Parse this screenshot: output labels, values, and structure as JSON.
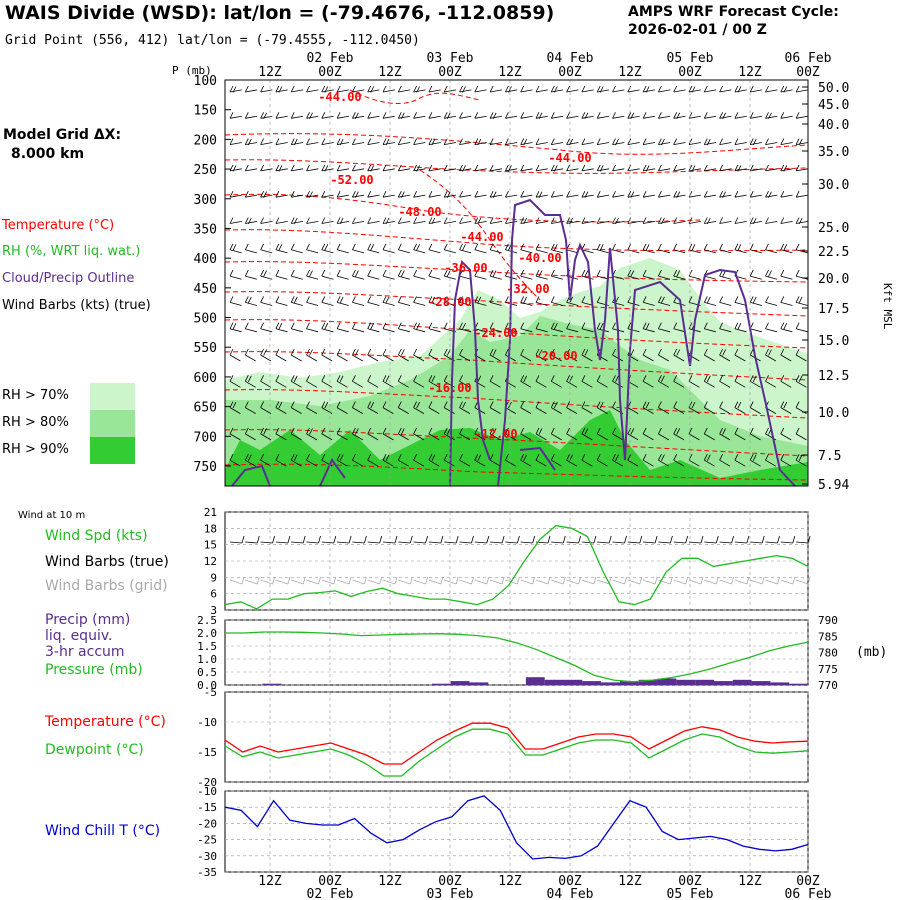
{
  "header": {
    "title": "WAIS Divide (WSD):  lat/lon = (-79.4676, -112.0859)",
    "grid_point": "Grid Point (556, 412) lat/lon = (-79.4555, -112.0450)",
    "cycle_line1": "AMPS WRF Forecast Cycle:",
    "cycle_line2": "2026-02-01 / 00  Z"
  },
  "left_panel": {
    "grid_label_line1": "Model Grid ΔX:",
    "grid_label_line2": "8.000 km",
    "legend_temperature": "Temperature (°C)",
    "legend_rh": "RH (%, WRT liq. wat.)",
    "legend_cloud": "Cloud/Precip Outline",
    "legend_wind": "Wind Barbs (kts) (true)",
    "rh_70": "RH > 70%",
    "rh_80": "RH > 80%",
    "rh_90": "RH > 90%",
    "wind10m": "Wind at 10 m",
    "wind_spd": "Wind Spd (kts)",
    "wind_barbs_true": "Wind Barbs (true)",
    "wind_barbs_grid": "Wind Barbs (grid)",
    "precip1": "Precip (mm)",
    "precip2": "liq. equiv.",
    "precip3": "3-hr accum",
    "pressure": "Pressure (mb)",
    "temperature": "Temperature (°C)",
    "dewpoint": "Dewpoint (°C)",
    "wind_chill": "Wind Chill T (°C)"
  },
  "colors": {
    "temperature": "#ff0000",
    "rh70": "#ccf5cc",
    "rh80": "#99e699",
    "rh90": "#33cc33",
    "cloud": "#5a2d91",
    "wind_spd": "#22bb22",
    "pressure": "#22bb22",
    "precip": "#5a2d91",
    "wind_chill": "#0000cc",
    "grid_barbs": "#aaaaaa"
  },
  "chart_data": [
    {
      "type": "contour",
      "name": "cross-section",
      "x_axis_top": {
        "ticks": [
          "12Z",
          "00Z",
          "12Z",
          "00Z",
          "12Z",
          "00Z",
          "12Z",
          "00Z",
          "12Z",
          "00Z"
        ],
        "day_labels": [
          "02 Feb",
          "03 Feb",
          "04 Feb",
          "05 Feb",
          "06 Feb"
        ]
      },
      "ylabel": "P (mb)",
      "y_ticks": [
        100,
        150,
        200,
        250,
        300,
        350,
        400,
        450,
        500,
        550,
        600,
        650,
        700,
        750
      ],
      "y2_label": "Kft MSL",
      "y2_ticks": [
        "50.0",
        "45.0",
        "40.0",
        "35.0",
        "30.0",
        "25.0",
        "22.5",
        "20.0",
        "17.5",
        "15.0",
        "12.5",
        "10.0",
        "7.5",
        "5.94"
      ],
      "temperature_labels": [
        "-44.00",
        "-44.00",
        "-52.00",
        "-48.00",
        "-44.00",
        "-40.00",
        "-36.00",
        "-32.00",
        "-28.00",
        "-24.00",
        "-20.00",
        "-16.00",
        "-12.00"
      ]
    },
    {
      "type": "line",
      "name": "wind-speed",
      "y_ticks": [
        3,
        6,
        9,
        12,
        15,
        18,
        21
      ],
      "ylim": [
        3,
        21
      ],
      "values": [
        4,
        4.5,
        3.2,
        5,
        5,
        6,
        6.2,
        6.5,
        5.5,
        6.4,
        7,
        6,
        5.5,
        5,
        5,
        4.5,
        4,
        5,
        7.5,
        12,
        16,
        18.5,
        18,
        16.5,
        10,
        4.5,
        4,
        5,
        10,
        12.5,
        12.5,
        11,
        11.5,
        12,
        12.5,
        13,
        12.5,
        11
      ]
    },
    {
      "type": "line+bar",
      "name": "precip-pressure",
      "y_ticks": [
        "0.0",
        "0.5",
        "1.0",
        "1.5",
        "2.0",
        "2.5"
      ],
      "y2_ticks": [
        "770",
        "775",
        "780",
        "785",
        "790"
      ],
      "y2_label": "(mb)",
      "pressure": [
        786,
        786,
        786.3,
        786.3,
        786.2,
        786,
        785.7,
        785.2,
        785.4,
        785.6,
        785.7,
        785.8,
        785.6,
        785.2,
        784.5,
        783,
        781,
        778.5,
        776,
        773,
        771.5,
        771,
        771.5,
        772.3,
        773.5,
        775,
        776.8,
        778.5,
        780.5,
        782,
        783.2
      ],
      "precip": [
        0,
        0,
        0.05,
        0,
        0,
        0,
        0,
        0,
        0,
        0,
        0,
        0.05,
        0.15,
        0.1,
        0,
        0,
        0.3,
        0.2,
        0.2,
        0.15,
        0.1,
        0.15,
        0.2,
        0.25,
        0.2,
        0.2,
        0.15,
        0.2,
        0.15,
        0.1,
        0.05
      ]
    },
    {
      "type": "line",
      "name": "temperature-dewpoint",
      "y_ticks": [
        -5,
        -10,
        -15,
        -20
      ],
      "ylim": [
        -20,
        -5
      ],
      "temperature": [
        -13,
        -15,
        -14,
        -15,
        -14.5,
        -14,
        -13.5,
        -14.5,
        -15.5,
        -17,
        -17,
        -15,
        -13,
        -11.5,
        -10.2,
        -10.2,
        -11,
        -14.5,
        -14.5,
        -13.5,
        -12.5,
        -12,
        -12,
        -12.5,
        -14.5,
        -13,
        -11.5,
        -10.8,
        -11.3,
        -12.5,
        -13.2,
        -13.5,
        -13.3,
        -13.2
      ],
      "dewpoint": [
        -14,
        -15.8,
        -15,
        -16,
        -15.5,
        -15,
        -14.5,
        -15.5,
        -17,
        -19,
        -19,
        -16.5,
        -14.5,
        -12.5,
        -11.2,
        -11.2,
        -12,
        -15.5,
        -15.5,
        -14.5,
        -13.5,
        -13,
        -13,
        -13.5,
        -16,
        -14.5,
        -13,
        -12,
        -12.5,
        -14,
        -15,
        -15.2,
        -15,
        -14.8
      ]
    },
    {
      "type": "line",
      "name": "wind-chill",
      "y_ticks": [
        -10,
        -15,
        -20,
        -25,
        -30,
        -35
      ],
      "ylim": [
        -35,
        -10
      ],
      "values": [
        -15,
        -16,
        -21,
        -13,
        -19,
        -20,
        -20.5,
        -20.5,
        -18.5,
        -23,
        -26,
        -25,
        -22,
        -19.5,
        -18,
        -13,
        -11.5,
        -16,
        -26,
        -31,
        -30.5,
        -30.8,
        -30,
        -27,
        -20,
        -13,
        -15,
        -22.5,
        -25,
        -24.5,
        -24,
        -25,
        -27,
        -28,
        -28.5,
        -28,
        -26.5
      ]
    }
  ],
  "bottom_axis": {
    "ticks": [
      "12Z",
      "00Z",
      "12Z",
      "00Z",
      "12Z",
      "00Z",
      "12Z",
      "00Z",
      "12Z",
      "00Z"
    ],
    "day_labels": [
      "02 Feb",
      "03 Feb",
      "04 Feb",
      "05 Feb",
      "06 Feb"
    ]
  }
}
